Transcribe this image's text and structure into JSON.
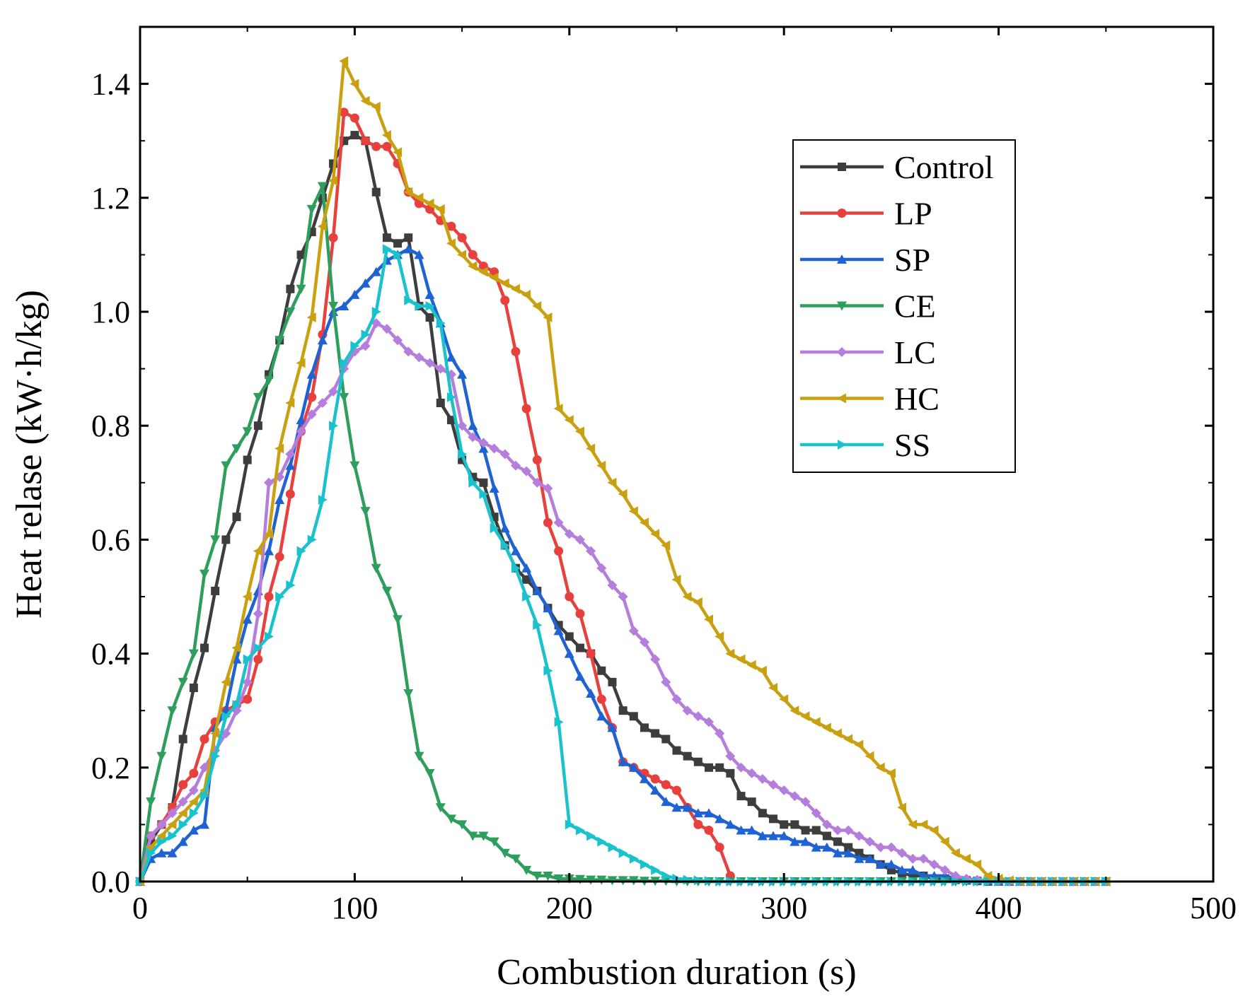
{
  "chart_data": {
    "type": "line",
    "xlabel": "Combustion duration (s)",
    "ylabel": "Heat relase (kW·h/kg)",
    "xlim": [
      0,
      500
    ],
    "ylim": [
      0,
      1.5
    ],
    "xticks": [
      "0",
      "100",
      "200",
      "300",
      "400",
      "500"
    ],
    "yticks": [
      "0.0",
      "0.2",
      "0.4",
      "0.6",
      "0.8",
      "1.0",
      "1.2",
      "1.4"
    ],
    "grid": false,
    "legend_position": "top-right",
    "series": [
      {
        "name": "Control",
        "color": "#3d3d3d",
        "marker": "square",
        "x": [
          0,
          5,
          10,
          15,
          20,
          25,
          30,
          35,
          40,
          45,
          50,
          55,
          60,
          65,
          70,
          75,
          80,
          85,
          90,
          95,
          100,
          105,
          110,
          115,
          120,
          125,
          130,
          135,
          140,
          145,
          150,
          155,
          160,
          165,
          170,
          175,
          180,
          185,
          190,
          195,
          200,
          205,
          210,
          215,
          220,
          225,
          230,
          235,
          240,
          245,
          250,
          255,
          260,
          265,
          270,
          275,
          280,
          285,
          290,
          295,
          300,
          305,
          310,
          315,
          320,
          325,
          330,
          335,
          340,
          345,
          350,
          355,
          360,
          365,
          370,
          375,
          380,
          385,
          390,
          395,
          400,
          405,
          410,
          415,
          420,
          425,
          430,
          435,
          440,
          445,
          450
        ],
        "y": [
          0,
          0.07,
          0.1,
          0.13,
          0.25,
          0.34,
          0.41,
          0.51,
          0.6,
          0.64,
          0.74,
          0.8,
          0.89,
          0.95,
          1.04,
          1.1,
          1.14,
          1.2,
          1.26,
          1.3,
          1.31,
          1.3,
          1.21,
          1.13,
          1.12,
          1.13,
          1.01,
          0.99,
          0.84,
          0.81,
          0.74,
          0.71,
          0.7,
          0.64,
          0.59,
          0.55,
          0.53,
          0.51,
          0.48,
          0.45,
          0.43,
          0.41,
          0.4,
          0.37,
          0.35,
          0.3,
          0.29,
          0.27,
          0.26,
          0.25,
          0.23,
          0.22,
          0.21,
          0.2,
          0.2,
          0.19,
          0.15,
          0.14,
          0.12,
          0.11,
          0.1,
          0.1,
          0.09,
          0.09,
          0.08,
          0.07,
          0.06,
          0.05,
          0.04,
          0.03,
          0.02,
          0.015,
          0.01,
          0.01,
          0.005,
          0.005,
          0.003,
          0.002,
          0.001,
          0,
          0,
          0,
          0,
          0,
          0,
          0,
          0,
          0,
          0,
          0,
          0
        ]
      },
      {
        "name": "LP",
        "color": "#e8403c",
        "marker": "circle",
        "x": [
          0,
          5,
          10,
          15,
          20,
          25,
          30,
          35,
          40,
          45,
          50,
          55,
          60,
          65,
          70,
          75,
          80,
          85,
          90,
          95,
          100,
          105,
          110,
          115,
          120,
          125,
          130,
          135,
          140,
          145,
          150,
          155,
          160,
          165,
          170,
          175,
          180,
          185,
          190,
          195,
          200,
          205,
          210,
          215,
          220,
          225,
          230,
          235,
          240,
          245,
          250,
          255,
          260,
          265,
          270,
          275
        ],
        "y": [
          0,
          0.08,
          0.1,
          0.13,
          0.17,
          0.19,
          0.25,
          0.28,
          0.3,
          0.31,
          0.32,
          0.39,
          0.5,
          0.57,
          0.68,
          0.79,
          0.85,
          0.96,
          1.13,
          1.35,
          1.34,
          1.3,
          1.29,
          1.29,
          1.26,
          1.21,
          1.19,
          1.18,
          1.16,
          1.15,
          1.13,
          1.1,
          1.08,
          1.07,
          1.02,
          0.93,
          0.83,
          0.74,
          0.63,
          0.58,
          0.5,
          0.47,
          0.4,
          0.32,
          0.27,
          0.21,
          0.2,
          0.19,
          0.18,
          0.17,
          0.16,
          0.13,
          0.1,
          0.09,
          0.06,
          0.01
        ]
      },
      {
        "name": "SP",
        "color": "#1f62d2",
        "marker": "triangle-up",
        "x": [
          0,
          5,
          10,
          15,
          20,
          25,
          30,
          35,
          40,
          45,
          50,
          55,
          60,
          65,
          70,
          75,
          80,
          85,
          90,
          95,
          100,
          105,
          110,
          115,
          120,
          125,
          130,
          135,
          140,
          145,
          150,
          155,
          160,
          165,
          170,
          175,
          180,
          185,
          190,
          195,
          200,
          205,
          210,
          215,
          220,
          225,
          230,
          235,
          240,
          245,
          250,
          255,
          260,
          265,
          270,
          275,
          280,
          285,
          290,
          295,
          300,
          305,
          310,
          315,
          320,
          325,
          330,
          335,
          340,
          345,
          350,
          355,
          360,
          365,
          370,
          375,
          380,
          385,
          390,
          395,
          400,
          405,
          410,
          415,
          420,
          425,
          430,
          435,
          440,
          445,
          450
        ],
        "y": [
          0,
          0.04,
          0.05,
          0.05,
          0.07,
          0.09,
          0.1,
          0.27,
          0.3,
          0.39,
          0.46,
          0.51,
          0.58,
          0.67,
          0.73,
          0.81,
          0.89,
          0.95,
          1.0,
          1.01,
          1.03,
          1.05,
          1.07,
          1.09,
          1.1,
          1.11,
          1.1,
          1.03,
          0.98,
          0.92,
          0.89,
          0.8,
          0.76,
          0.69,
          0.62,
          0.58,
          0.55,
          0.51,
          0.48,
          0.44,
          0.4,
          0.36,
          0.33,
          0.29,
          0.27,
          0.21,
          0.2,
          0.18,
          0.16,
          0.14,
          0.13,
          0.13,
          0.12,
          0.12,
          0.11,
          0.1,
          0.09,
          0.09,
          0.08,
          0.08,
          0.08,
          0.07,
          0.07,
          0.06,
          0.06,
          0.05,
          0.05,
          0.04,
          0.04,
          0.03,
          0.03,
          0.02,
          0.02,
          0.01,
          0.01,
          0.01,
          0.005,
          0.003,
          0.002,
          0.001,
          0,
          0,
          0,
          0,
          0,
          0,
          0,
          0,
          0,
          0,
          0
        ]
      },
      {
        "name": "CE",
        "color": "#2e9e5d",
        "marker": "triangle-down",
        "x": [
          0,
          5,
          10,
          15,
          20,
          25,
          30,
          35,
          40,
          45,
          50,
          55,
          60,
          65,
          70,
          75,
          80,
          85,
          90,
          95,
          100,
          105,
          110,
          115,
          120,
          125,
          130,
          135,
          140,
          145,
          150,
          155,
          160,
          165,
          170,
          175,
          180,
          185,
          190,
          195,
          200,
          205,
          210,
          215,
          220,
          225,
          230,
          235,
          240,
          245,
          250,
          255,
          260,
          265,
          270,
          275,
          280,
          285,
          290,
          295,
          300,
          305,
          310,
          315,
          320,
          325,
          330,
          335,
          340,
          345,
          350,
          355,
          360,
          365,
          370,
          375,
          380,
          385,
          390,
          395,
          400,
          405,
          410,
          415,
          420,
          425,
          430,
          435,
          440,
          445,
          450
        ],
        "y": [
          0,
          0.14,
          0.22,
          0.3,
          0.35,
          0.4,
          0.54,
          0.6,
          0.73,
          0.76,
          0.79,
          0.85,
          0.88,
          0.95,
          1.0,
          1.04,
          1.18,
          1.22,
          1.01,
          0.85,
          0.73,
          0.65,
          0.55,
          0.51,
          0.46,
          0.33,
          0.22,
          0.19,
          0.13,
          0.11,
          0.1,
          0.08,
          0.08,
          0.07,
          0.05,
          0.04,
          0.02,
          0.01,
          0.01,
          0.005,
          0.005,
          0.004,
          0.003,
          0.003,
          0.002,
          0.002,
          0.002,
          0.001,
          0.001,
          0.001,
          0,
          0,
          0,
          0,
          0,
          0,
          0,
          0,
          0,
          0,
          0,
          0,
          0,
          0,
          0,
          0,
          0,
          0,
          0,
          0,
          0,
          0,
          0,
          0,
          0,
          0,
          0,
          0,
          0,
          0,
          0,
          0,
          0,
          0,
          0,
          0,
          0,
          0,
          0,
          0,
          0
        ]
      },
      {
        "name": "LC",
        "color": "#b57edc",
        "marker": "diamond",
        "x": [
          0,
          5,
          10,
          15,
          20,
          25,
          30,
          35,
          40,
          45,
          50,
          55,
          60,
          65,
          70,
          75,
          80,
          85,
          90,
          95,
          100,
          105,
          110,
          115,
          120,
          125,
          130,
          135,
          140,
          145,
          150,
          155,
          160,
          165,
          170,
          175,
          180,
          185,
          190,
          195,
          200,
          205,
          210,
          215,
          220,
          225,
          230,
          235,
          240,
          245,
          250,
          255,
          260,
          265,
          270,
          275,
          280,
          285,
          290,
          295,
          300,
          305,
          310,
          315,
          320,
          325,
          330,
          335,
          340,
          345,
          350,
          355,
          360,
          365,
          370,
          375,
          380,
          385,
          390,
          395,
          400,
          405,
          410,
          415,
          420,
          425,
          430,
          435,
          440,
          445,
          450
        ],
        "y": [
          0,
          0.08,
          0.1,
          0.12,
          0.14,
          0.16,
          0.2,
          0.23,
          0.26,
          0.3,
          0.35,
          0.47,
          0.7,
          0.71,
          0.75,
          0.79,
          0.82,
          0.84,
          0.86,
          0.9,
          0.93,
          0.94,
          0.98,
          0.97,
          0.95,
          0.93,
          0.92,
          0.91,
          0.9,
          0.89,
          0.8,
          0.78,
          0.77,
          0.76,
          0.75,
          0.73,
          0.72,
          0.7,
          0.69,
          0.63,
          0.61,
          0.6,
          0.58,
          0.55,
          0.52,
          0.5,
          0.44,
          0.42,
          0.39,
          0.35,
          0.32,
          0.3,
          0.29,
          0.28,
          0.26,
          0.22,
          0.2,
          0.19,
          0.18,
          0.17,
          0.16,
          0.15,
          0.14,
          0.12,
          0.1,
          0.09,
          0.09,
          0.08,
          0.07,
          0.06,
          0.06,
          0.05,
          0.04,
          0.04,
          0.03,
          0.02,
          0.01,
          0.005,
          0.003,
          0.002,
          0.001,
          0,
          0,
          0,
          0,
          0,
          0,
          0,
          0,
          0,
          0
        ]
      },
      {
        "name": "HC",
        "color": "#c9a010",
        "marker": "triangle-left",
        "x": [
          0,
          5,
          10,
          15,
          20,
          25,
          30,
          35,
          40,
          45,
          50,
          55,
          60,
          65,
          70,
          75,
          80,
          85,
          90,
          95,
          100,
          105,
          110,
          115,
          120,
          125,
          130,
          135,
          140,
          145,
          150,
          155,
          160,
          165,
          170,
          175,
          180,
          185,
          190,
          195,
          200,
          205,
          210,
          215,
          220,
          225,
          230,
          235,
          240,
          245,
          250,
          255,
          260,
          265,
          270,
          275,
          280,
          285,
          290,
          295,
          300,
          305,
          310,
          315,
          320,
          325,
          330,
          335,
          340,
          345,
          350,
          355,
          360,
          365,
          370,
          375,
          380,
          385,
          390,
          395,
          400,
          405,
          410,
          415,
          420,
          425,
          430,
          435,
          440,
          445,
          450
        ],
        "y": [
          0,
          0.06,
          0.08,
          0.1,
          0.12,
          0.14,
          0.16,
          0.26,
          0.35,
          0.41,
          0.5,
          0.58,
          0.61,
          0.76,
          0.84,
          0.91,
          0.99,
          1.15,
          1.23,
          1.44,
          1.4,
          1.37,
          1.36,
          1.31,
          1.28,
          1.21,
          1.2,
          1.19,
          1.18,
          1.12,
          1.1,
          1.08,
          1.07,
          1.06,
          1.05,
          1.04,
          1.03,
          1.01,
          0.99,
          0.83,
          0.81,
          0.79,
          0.76,
          0.73,
          0.7,
          0.68,
          0.65,
          0.63,
          0.61,
          0.59,
          0.53,
          0.5,
          0.49,
          0.46,
          0.43,
          0.4,
          0.39,
          0.38,
          0.37,
          0.34,
          0.32,
          0.3,
          0.29,
          0.28,
          0.27,
          0.26,
          0.25,
          0.24,
          0.22,
          0.2,
          0.19,
          0.13,
          0.1,
          0.1,
          0.09,
          0.07,
          0.05,
          0.04,
          0.03,
          0.01,
          0.005,
          0.002,
          0,
          0,
          0,
          0,
          0,
          0,
          0,
          0,
          0
        ]
      },
      {
        "name": "SS",
        "color": "#19c2cc",
        "marker": "triangle-right",
        "x": [
          0,
          5,
          10,
          15,
          20,
          25,
          30,
          35,
          40,
          45,
          50,
          55,
          60,
          65,
          70,
          75,
          80,
          85,
          90,
          95,
          100,
          105,
          110,
          115,
          120,
          125,
          130,
          135,
          140,
          145,
          150,
          155,
          160,
          165,
          170,
          175,
          180,
          185,
          190,
          195,
          200,
          205,
          210,
          215,
          220,
          225,
          230,
          235,
          240,
          245,
          250,
          255,
          260,
          265,
          270,
          275,
          280,
          285,
          290,
          295,
          300,
          305,
          310,
          315,
          320,
          325,
          330,
          335,
          340,
          345,
          350,
          355,
          360,
          365,
          370,
          375,
          380,
          385,
          390,
          395,
          400,
          405,
          410,
          415,
          420,
          425,
          430,
          435,
          440,
          445,
          450
        ],
        "y": [
          0,
          0.05,
          0.07,
          0.08,
          0.1,
          0.12,
          0.15,
          0.22,
          0.29,
          0.31,
          0.39,
          0.41,
          0.43,
          0.5,
          0.52,
          0.58,
          0.6,
          0.67,
          0.8,
          0.91,
          0.94,
          0.96,
          1.0,
          1.11,
          1.1,
          1.02,
          1.01,
          1.01,
          0.98,
          0.85,
          0.75,
          0.7,
          0.68,
          0.62,
          0.59,
          0.55,
          0.5,
          0.45,
          0.37,
          0.28,
          0.1,
          0.09,
          0.08,
          0.07,
          0.06,
          0.05,
          0.04,
          0.03,
          0.02,
          0.01,
          0.005,
          0.003,
          0.002,
          0.001,
          0,
          0,
          0,
          0,
          0,
          0,
          0,
          0,
          0,
          0,
          0,
          0,
          0,
          0,
          0,
          0,
          0,
          0,
          0,
          0,
          0,
          0,
          0,
          0,
          0,
          0,
          0,
          0,
          0,
          0,
          0,
          0,
          0,
          0,
          0,
          0,
          0
        ]
      }
    ]
  }
}
